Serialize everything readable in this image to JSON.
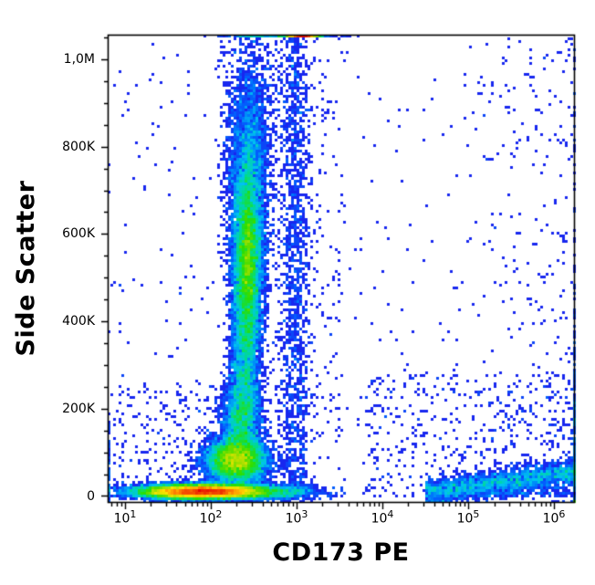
{
  "page": {
    "background": "#ffffff"
  },
  "chart_data": {
    "type": "scatter",
    "subtype": "flow-cytometry-pseudocolor-density",
    "title": "",
    "xlabel": "CD173 PE",
    "ylabel": "Side Scatter",
    "x_scale": "log10",
    "xlim_log10": [
      0.8,
      6.23
    ],
    "ylim": [
      -13600,
      1056500
    ],
    "grid": false,
    "legend": "none",
    "x_axis": {
      "decades": [
        {
          "base": "10",
          "exp": "1",
          "log": 1
        },
        {
          "base": "10",
          "exp": "2",
          "log": 2
        },
        {
          "base": "10",
          "exp": "3",
          "log": 3
        },
        {
          "base": "10",
          "exp": "4",
          "log": 4
        },
        {
          "base": "10",
          "exp": "5",
          "log": 5
        },
        {
          "base": "10",
          "exp": "6",
          "log": 6
        }
      ],
      "minor_mantissas": [
        2,
        3,
        4,
        5,
        6,
        7,
        8,
        9
      ]
    },
    "y_axis": {
      "majors": [
        {
          "label": "1,0M",
          "value": 1000000
        },
        {
          "label": "800K",
          "value": 800000
        },
        {
          "label": "600K",
          "value": 600000
        },
        {
          "label": "400K",
          "value": 400000
        },
        {
          "label": "200K",
          "value": 200000
        },
        {
          "label": "0",
          "value": 0
        }
      ],
      "minor_step": 50000,
      "minor_min": 0,
      "minor_max": 1050000
    },
    "colormap_stops": [
      {
        "v": 0.0,
        "c": "#1a1ae6"
      },
      {
        "v": 0.14,
        "c": "#1828f0"
      },
      {
        "v": 0.28,
        "c": "#0064ff"
      },
      {
        "v": 0.42,
        "c": "#00c3f0"
      },
      {
        "v": 0.53,
        "c": "#00dd88"
      },
      {
        "v": 0.63,
        "c": "#2add00"
      },
      {
        "v": 0.73,
        "c": "#a8e000"
      },
      {
        "v": 0.81,
        "c": "#ffe200"
      },
      {
        "v": 0.89,
        "c": "#ff8c00"
      },
      {
        "v": 1.0,
        "c": "#e60000"
      }
    ],
    "populations": [
      {
        "name": "debris-rbc-band",
        "type": "gaussian",
        "n": 16000,
        "xc": 1.92,
        "xs": 0.36,
        "yc": 10000,
        "ys": 8000
      },
      {
        "name": "lymphocytes",
        "type": "gaussian",
        "n": 7000,
        "xc": 2.3,
        "xs": 0.17,
        "yc": 82000,
        "ys": 26000
      },
      {
        "name": "monocytes-low-ssc",
        "type": "gaussian",
        "n": 2600,
        "xc": 2.36,
        "xs": 0.11,
        "yc": 180000,
        "ys": 50000
      },
      {
        "name": "column-neck",
        "type": "gaussian",
        "n": 2300,
        "xc": 2.4,
        "xs": 0.08,
        "yc": 330000,
        "ys": 90000
      },
      {
        "name": "granulocytes-main",
        "type": "gaussian",
        "n": 7500,
        "xc": 2.43,
        "xs": 0.095,
        "yc": 550000,
        "ys": 120000
      },
      {
        "name": "granulocytes-hot-core",
        "type": "gaussian",
        "n": 1600,
        "xc": 2.43,
        "xs": 0.05,
        "yc": 545000,
        "ys": 80000
      },
      {
        "name": "granulocytes-upper",
        "type": "gaussian",
        "n": 2600,
        "xc": 2.45,
        "xs": 0.13,
        "yc": 790000,
        "ys": 130000
      },
      {
        "name": "top-edge-pileup",
        "type": "gaussian",
        "n": 1200,
        "xc": 3.07,
        "xs": 0.09,
        "yc": 1200000,
        "ys": 30000
      },
      {
        "name": "top-edge-line-wide",
        "type": "gaussian",
        "n": 280,
        "xc": 2.9,
        "xs": 0.3,
        "yc": 1150000,
        "ys": 20000
      },
      {
        "name": "cd173-dim-column",
        "type": "gaussian_x_uniform_y",
        "n": 1500,
        "xc": 2.98,
        "xs": 0.09,
        "y0": -5000,
        "y1": 1056000
      },
      {
        "name": "mid-scatter",
        "type": "uniform",
        "n": 260,
        "x0": 2.55,
        "x1": 3.55,
        "y0": 0,
        "y1": 1050000
      },
      {
        "name": "right-upper-scatter",
        "type": "gaussian_x_uniform_y",
        "n": 250,
        "xc": 5.9,
        "xs": 0.55,
        "y0": 100000,
        "y1": 1050000
      },
      {
        "name": "wide-sparse-scatter",
        "type": "uniform",
        "n": 170,
        "x0": 3.3,
        "x1": 6.28,
        "y0": 0,
        "y1": 1050000
      },
      {
        "name": "lower-right-scatter",
        "type": "uniform",
        "n": 450,
        "x0": 3.8,
        "x1": 6.28,
        "y0": 0,
        "y1": 280000
      },
      {
        "name": "cd173-bright-low-ssc-band",
        "type": "trend",
        "n": 2600,
        "x0": 4.5,
        "x1": 6.28,
        "y_start": 8000,
        "slope_per_decade": 26000,
        "ys": 15000
      },
      {
        "name": "right-edge-pileup",
        "type": "gaussian",
        "n": 220,
        "xc": 6.4,
        "xs": 0.15,
        "yc": 120000,
        "ys": 130000
      },
      {
        "name": "left-scatter-low",
        "type": "uniform",
        "n": 220,
        "x0": 0.82,
        "x1": 2.2,
        "y0": 0,
        "y1": 260000
      },
      {
        "name": "left-scatter-full",
        "type": "uniform",
        "n": 130,
        "x0": 0.82,
        "x1": 2.25,
        "y0": 0,
        "y1": 1050000
      },
      {
        "name": "left-edge-pileup",
        "type": "gaussian",
        "n": 60,
        "xc": 0.72,
        "xs": 0.1,
        "yc": 70000,
        "ys": 50000
      },
      {
        "name": "bottom-tail-mid",
        "type": "gaussian",
        "n": 800,
        "xc": 2.75,
        "xs": 0.32,
        "yc": 8000,
        "ys": 9000
      },
      {
        "name": "bottom-right-edge",
        "type": "uniform",
        "n": 80,
        "x0": 5.2,
        "x1": 6.28,
        "y0": 0,
        "y1": 9000
      }
    ]
  }
}
